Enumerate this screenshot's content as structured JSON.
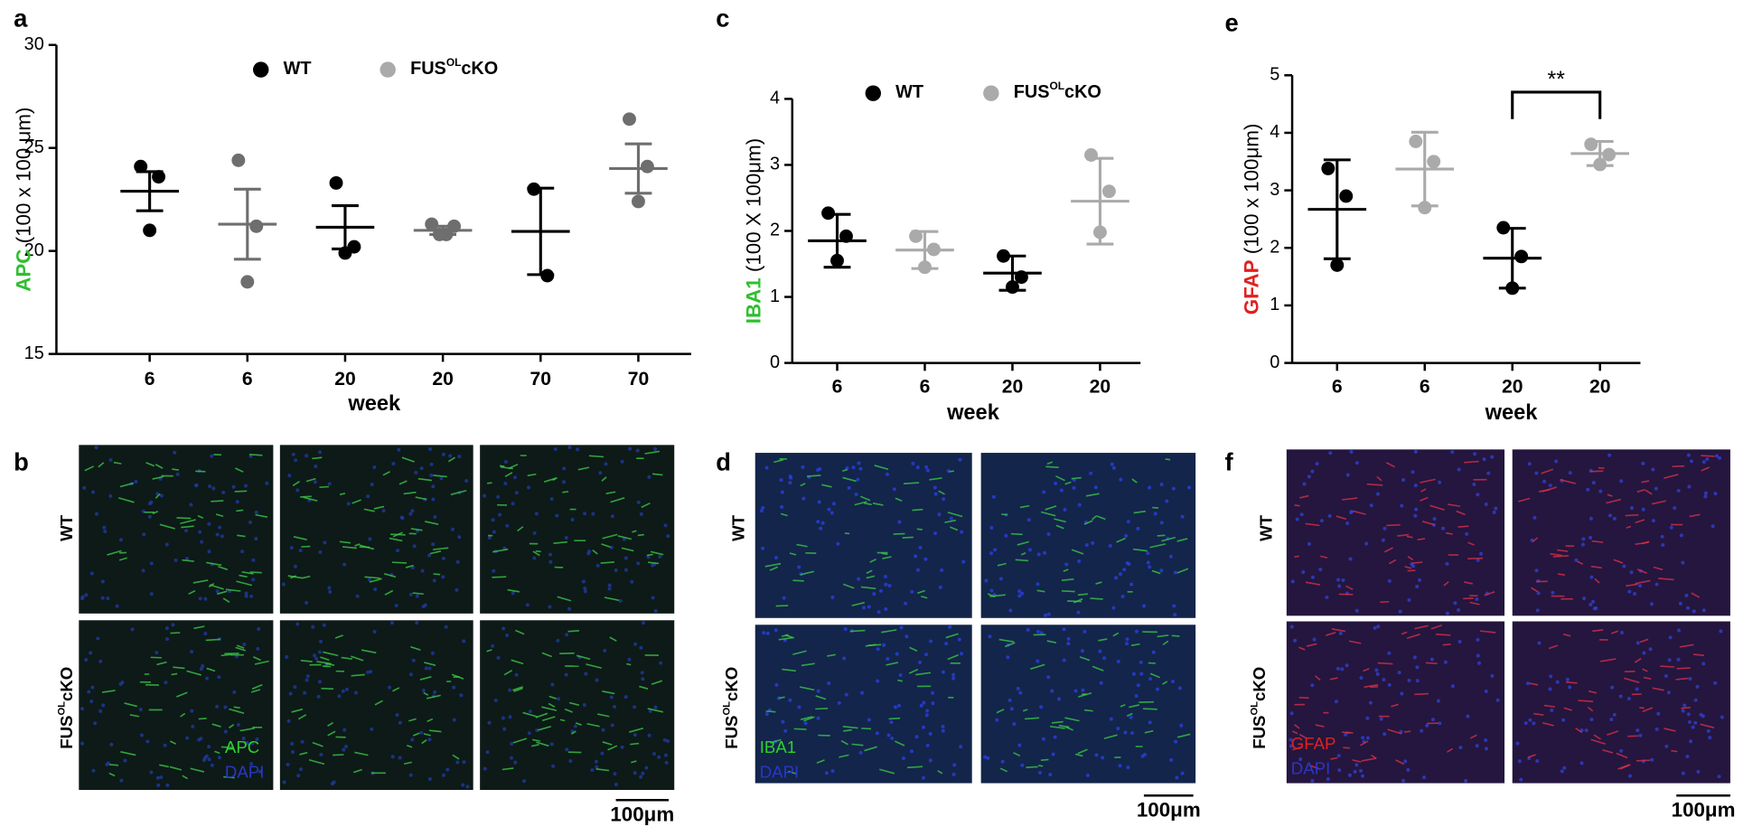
{
  "chart_data": [
    {
      "type": "dot",
      "xlabel": "week",
      "ylabel": {
        "marker": "APC",
        "marker_color": "#2fbf2f",
        "unit": "(100 x 100 μm)"
      },
      "categories": [
        "6",
        "6",
        "20",
        "20",
        "70",
        "70"
      ],
      "ylim": [
        15,
        30
      ],
      "yticks": [
        15,
        20,
        25,
        30
      ],
      "series": [
        {
          "name": {
            "base": "WT"
          },
          "color": "#000000",
          "legend_color": "#000000",
          "points": [
            [
              24.1,
              23.6,
              21.0
            ],
            null,
            [
              23.3,
              20.2,
              19.9
            ],
            null,
            [
              23.0,
              18.8
            ],
            null
          ],
          "mean": [
            22.9,
            null,
            21.15,
            null,
            20.95,
            null
          ],
          "error": [
            0.95,
            null,
            1.05,
            null,
            2.1,
            null
          ]
        },
        {
          "name": {
            "base": "FUS",
            "sup": "OL",
            "suffix": "cKO"
          },
          "color": "#6e6e6e",
          "legend_color": "#aaaaaa",
          "points": [
            null,
            [
              24.4,
              21.2,
              18.5
            ],
            null,
            [
              21.3,
              21.2,
              20.8,
              20.8
            ],
            null,
            [
              26.4,
              24.1,
              22.4
            ]
          ],
          "mean": [
            null,
            21.3,
            null,
            21.0,
            null,
            24.0
          ],
          "error": [
            null,
            1.7,
            null,
            0.2,
            null,
            1.2
          ]
        }
      ]
    },
    {
      "type": "dot",
      "xlabel": "week",
      "ylabel": {
        "marker": "IBA1",
        "marker_color": "#2fbf2f",
        "unit": "(100 X 100μm)"
      },
      "categories": [
        "6",
        "6",
        "20",
        "20"
      ],
      "ylim": [
        0,
        4
      ],
      "yticks": [
        0,
        1,
        2,
        3,
        4
      ],
      "series": [
        {
          "name": {
            "base": "WT"
          },
          "color": "#000000",
          "legend_color": "#000000",
          "points": [
            [
              2.27,
              1.92,
              1.55
            ],
            null,
            [
              1.62,
              1.3,
              1.15
            ],
            null
          ],
          "mean": [
            1.85,
            null,
            1.36,
            null
          ],
          "error": [
            0.4,
            null,
            0.26,
            null
          ]
        },
        {
          "name": {
            "base": "FUS",
            "sup": "OL",
            "suffix": "cKO"
          },
          "color": "#aaaaaa",
          "legend_color": "#aaaaaa",
          "points": [
            null,
            [
              1.92,
              1.72,
              1.45
            ],
            null,
            [
              3.15,
              2.6,
              1.98
            ]
          ],
          "mean": [
            null,
            1.71,
            null,
            2.45
          ],
          "error": [
            null,
            0.28,
            null,
            0.65
          ]
        }
      ]
    },
    {
      "type": "dot",
      "xlabel": "week",
      "ylabel": {
        "marker": "GFAP",
        "marker_color": "#e02020",
        "unit": "(100 x 100μm)"
      },
      "categories": [
        "6",
        "6",
        "20",
        "20"
      ],
      "ylim": [
        0,
        5
      ],
      "yticks": [
        0,
        1,
        2,
        3,
        4,
        5
      ],
      "significance": {
        "from": 2,
        "to": 3,
        "label": "**"
      },
      "series": [
        {
          "name": {
            "base": "WT"
          },
          "color": "#000000",
          "points": [
            [
              3.38,
              2.9,
              1.7
            ],
            null,
            [
              2.35,
              1.85,
              1.3
            ],
            null
          ],
          "mean": [
            2.67,
            null,
            1.82,
            null
          ],
          "error": [
            0.86,
            null,
            0.52,
            null
          ]
        },
        {
          "name": {
            "base": "FUS",
            "sup": "OL",
            "suffix": "cKO"
          },
          "color": "#aaaaaa",
          "points": [
            null,
            [
              3.85,
              3.5,
              2.7
            ],
            null,
            [
              3.8,
              3.62,
              3.45
            ]
          ],
          "mean": [
            null,
            3.37,
            null,
            3.64
          ],
          "error": [
            null,
            0.64,
            null,
            0.21
          ]
        }
      ]
    }
  ],
  "figure": {
    "panel_labels": [
      "a",
      "b",
      "c",
      "d",
      "e",
      "f"
    ],
    "images": [
      {
        "rows": [
          {
            "base": "WT"
          },
          {
            "base": "FUS",
            "sup": "OL",
            "suffix": "cKO"
          }
        ],
        "markers": [
          {
            "text": "APC",
            "color": "#2fd02f"
          },
          {
            "text": "DAPI",
            "color": "#2a36c8"
          }
        ],
        "scale": "100μm"
      },
      {
        "rows": [
          {
            "base": "WT"
          },
          {
            "base": "FUS",
            "sup": "OL",
            "suffix": "cKO"
          }
        ],
        "markers": [
          {
            "text": "IBA1",
            "color": "#2fd02f"
          },
          {
            "text": "DAPI",
            "color": "#2a36c8"
          }
        ],
        "scale": "100μm"
      },
      {
        "rows": [
          {
            "base": "WT"
          },
          {
            "base": "FUS",
            "sup": "OL",
            "suffix": "cKO"
          }
        ],
        "markers": [
          {
            "text": "GFAP",
            "color": "#e02020"
          },
          {
            "text": "DAPI",
            "color": "#2a36c8"
          }
        ],
        "scale": "100μm"
      }
    ]
  }
}
